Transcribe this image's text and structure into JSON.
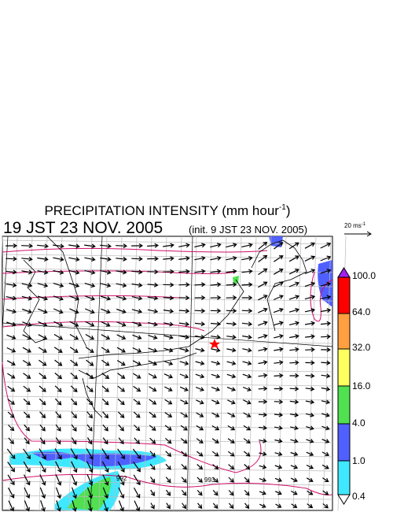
{
  "title": {
    "text": "PRECIPITATION INTENSITY (mm hour",
    "superscript": "-1",
    "close": ")"
  },
  "valid_time": "19 JST 23 NOV. 2005",
  "init_time": "(init. 9 JST 23 NOV. 2005)",
  "wind_scale": {
    "text": "20 ms",
    "superscript": "-1"
  },
  "colorbar": {
    "levels": [
      "100.0",
      "64.0",
      "32.0",
      "16.0",
      "4.0",
      "1.0",
      "0.4"
    ],
    "colors": [
      "#a020f0",
      "#ff0000",
      "#ffa040",
      "#ffff60",
      "#50e050",
      "#5060ff",
      "#40e8ff",
      "#ffffff"
    ]
  },
  "contour_labels": [
    "992",
    "993"
  ]
}
